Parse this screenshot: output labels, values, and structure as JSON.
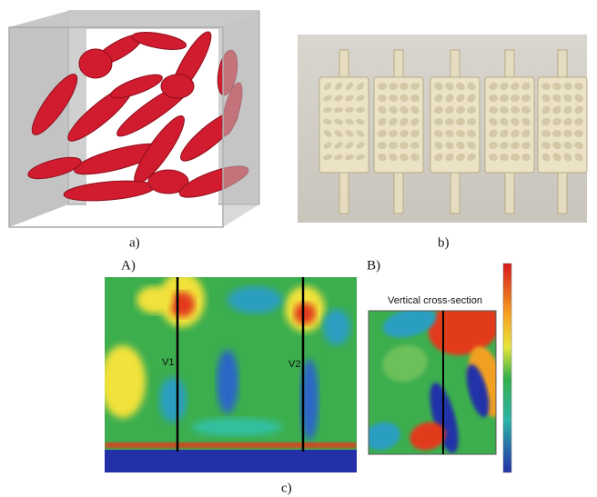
{
  "panels": {
    "a": {
      "label": "a)"
    },
    "b": {
      "label": "b)"
    },
    "c": {
      "label": "c)",
      "A": {
        "label": "A)",
        "line_labels": [
          "V1",
          "V2"
        ]
      },
      "B": {
        "label": "B)",
        "title": "Vertical cross-section"
      }
    }
  }
}
